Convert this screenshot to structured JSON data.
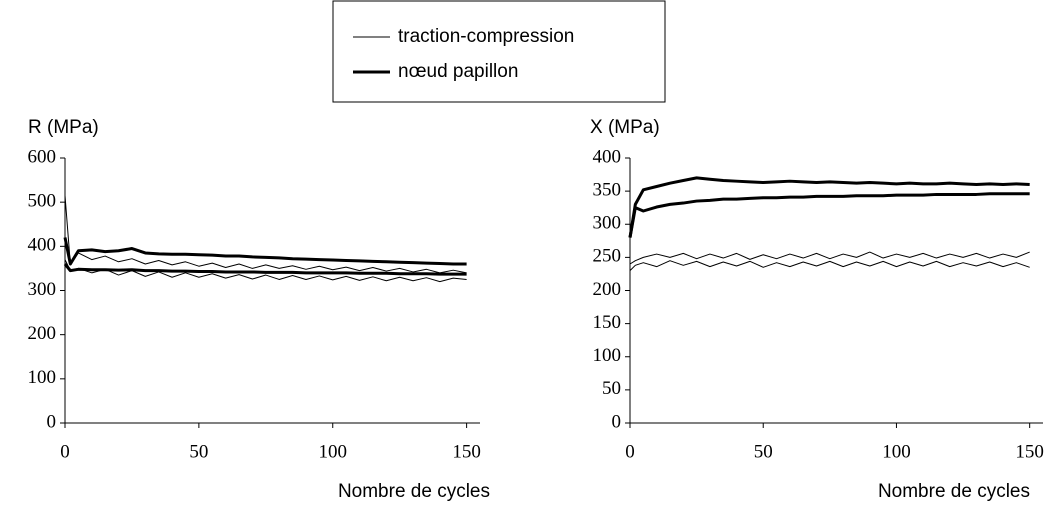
{
  "chart_data": [
    {
      "type": "line",
      "ylabel": "R (MPa)",
      "xlabel": "Nombre de cycles",
      "xlim": [
        0,
        155
      ],
      "xticks": [
        0,
        50,
        100,
        150
      ],
      "ylim": [
        0,
        600
      ],
      "yticks": [
        0,
        100,
        200,
        300,
        400,
        500,
        600
      ],
      "x": [
        0,
        2,
        5,
        10,
        15,
        20,
        25,
        30,
        35,
        40,
        45,
        50,
        55,
        60,
        65,
        70,
        75,
        80,
        85,
        90,
        95,
        100,
        105,
        110,
        115,
        120,
        125,
        130,
        135,
        140,
        145,
        150
      ],
      "series": [
        {
          "name": "traction-compression",
          "color": "#000000",
          "width": 1,
          "values": [
            515,
            360,
            385,
            370,
            378,
            365,
            372,
            360,
            368,
            358,
            365,
            355,
            362,
            352,
            360,
            350,
            358,
            350,
            356,
            348,
            355,
            347,
            353,
            345,
            352,
            344,
            350,
            342,
            348,
            340,
            346,
            340
          ]
        },
        {
          "name": "traction-compression",
          "color": "#000000",
          "width": 1,
          "values": [
            370,
            345,
            350,
            340,
            348,
            335,
            345,
            332,
            342,
            330,
            340,
            330,
            338,
            328,
            336,
            326,
            335,
            325,
            334,
            325,
            333,
            324,
            332,
            323,
            331,
            322,
            330,
            322,
            329,
            320,
            328,
            325
          ]
        },
        {
          "name": "nœud papillon",
          "color": "#000000",
          "width": 3,
          "values": [
            420,
            360,
            390,
            392,
            388,
            390,
            395,
            385,
            383,
            382,
            382,
            381,
            380,
            378,
            378,
            376,
            375,
            374,
            372,
            371,
            370,
            369,
            368,
            367,
            366,
            365,
            364,
            363,
            362,
            361,
            360,
            360
          ]
        },
        {
          "name": "nœud papillon",
          "color": "#000000",
          "width": 3,
          "values": [
            360,
            345,
            348,
            347,
            347,
            346,
            347,
            345,
            345,
            344,
            344,
            343,
            343,
            342,
            342,
            342,
            341,
            341,
            341,
            340,
            340,
            340,
            340,
            339,
            339,
            339,
            338,
            338,
            338,
            337,
            337,
            337
          ]
        }
      ]
    },
    {
      "type": "line",
      "ylabel": "X (MPa)",
      "xlabel": "Nombre de cycles",
      "xlim": [
        0,
        155
      ],
      "xticks": [
        0,
        50,
        100,
        150
      ],
      "ylim": [
        0,
        400
      ],
      "yticks": [
        0,
        50,
        100,
        150,
        200,
        250,
        300,
        350,
        400
      ],
      "x": [
        0,
        2,
        5,
        10,
        15,
        20,
        25,
        30,
        35,
        40,
        45,
        50,
        55,
        60,
        65,
        70,
        75,
        80,
        85,
        90,
        95,
        100,
        105,
        110,
        115,
        120,
        125,
        130,
        135,
        140,
        145,
        150
      ],
      "series": [
        {
          "name": "traction-compression",
          "color": "#000000",
          "width": 1,
          "values": [
            240,
            245,
            250,
            255,
            250,
            256,
            248,
            255,
            249,
            256,
            247,
            254,
            248,
            255,
            249,
            256,
            248,
            255,
            250,
            258,
            249,
            255,
            250,
            256,
            249,
            255,
            250,
            256,
            249,
            255,
            250,
            258
          ]
        },
        {
          "name": "traction-compression",
          "color": "#000000",
          "width": 1,
          "values": [
            230,
            238,
            242,
            236,
            245,
            238,
            244,
            236,
            243,
            237,
            244,
            235,
            242,
            236,
            243,
            237,
            244,
            236,
            243,
            237,
            244,
            236,
            243,
            237,
            244,
            236,
            242,
            237,
            243,
            236,
            242,
            235
          ]
        },
        {
          "name": "nœud papillon",
          "color": "#000000",
          "width": 3,
          "values": [
            280,
            330,
            352,
            357,
            362,
            366,
            370,
            368,
            366,
            365,
            364,
            363,
            364,
            365,
            364,
            363,
            364,
            363,
            362,
            363,
            362,
            361,
            362,
            361,
            361,
            362,
            361,
            360,
            361,
            360,
            361,
            360
          ]
        },
        {
          "name": "nœud papillon",
          "color": "#000000",
          "width": 3,
          "values": [
            280,
            325,
            320,
            326,
            330,
            332,
            335,
            336,
            338,
            338,
            339,
            340,
            340,
            341,
            341,
            342,
            342,
            342,
            343,
            343,
            343,
            344,
            344,
            344,
            345,
            345,
            345,
            345,
            346,
            346,
            346,
            346
          ]
        }
      ]
    }
  ]
}
